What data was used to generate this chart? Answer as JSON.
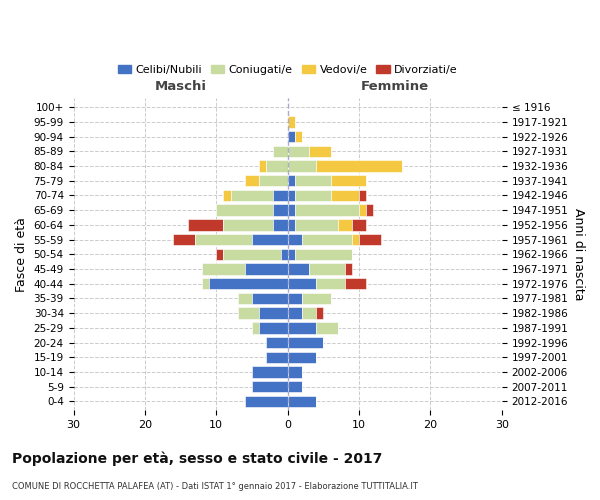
{
  "age_groups": [
    "0-4",
    "5-9",
    "10-14",
    "15-19",
    "20-24",
    "25-29",
    "30-34",
    "35-39",
    "40-44",
    "45-49",
    "50-54",
    "55-59",
    "60-64",
    "65-69",
    "70-74",
    "75-79",
    "80-84",
    "85-89",
    "90-94",
    "95-99",
    "100+"
  ],
  "birth_years": [
    "2012-2016",
    "2007-2011",
    "2002-2006",
    "1997-2001",
    "1992-1996",
    "1987-1991",
    "1982-1986",
    "1977-1981",
    "1972-1976",
    "1967-1971",
    "1962-1966",
    "1957-1961",
    "1952-1956",
    "1947-1951",
    "1942-1946",
    "1937-1941",
    "1932-1936",
    "1927-1931",
    "1922-1926",
    "1917-1921",
    "≤ 1916"
  ],
  "male": {
    "celibe": [
      6,
      5,
      5,
      3,
      3,
      4,
      4,
      5,
      11,
      6,
      1,
      5,
      2,
      2,
      2,
      0,
      0,
      0,
      0,
      0,
      0
    ],
    "coniugato": [
      0,
      0,
      0,
      0,
      0,
      1,
      3,
      2,
      1,
      6,
      8,
      8,
      7,
      8,
      6,
      4,
      3,
      2,
      0,
      0,
      0
    ],
    "vedovo": [
      0,
      0,
      0,
      0,
      0,
      0,
      0,
      0,
      0,
      0,
      0,
      0,
      0,
      0,
      1,
      2,
      1,
      0,
      0,
      0,
      0
    ],
    "divorziato": [
      0,
      0,
      0,
      0,
      0,
      0,
      0,
      0,
      0,
      0,
      1,
      3,
      5,
      0,
      0,
      0,
      0,
      0,
      0,
      0,
      0
    ]
  },
  "female": {
    "nubile": [
      4,
      2,
      2,
      4,
      5,
      4,
      2,
      2,
      4,
      3,
      1,
      2,
      1,
      1,
      1,
      1,
      0,
      0,
      1,
      0,
      0
    ],
    "coniugata": [
      0,
      0,
      0,
      0,
      0,
      3,
      2,
      4,
      4,
      5,
      8,
      7,
      6,
      9,
      5,
      5,
      4,
      3,
      0,
      0,
      0
    ],
    "vedova": [
      0,
      0,
      0,
      0,
      0,
      0,
      0,
      0,
      0,
      0,
      0,
      1,
      2,
      1,
      4,
      5,
      12,
      3,
      1,
      1,
      0
    ],
    "divorziata": [
      0,
      0,
      0,
      0,
      0,
      0,
      1,
      0,
      3,
      1,
      0,
      3,
      2,
      1,
      1,
      0,
      0,
      0,
      0,
      0,
      0
    ]
  },
  "colors": {
    "celibe": "#4472C4",
    "coniugato": "#c8dba0",
    "vedovo": "#F5C842",
    "divorziato": "#C0392B"
  },
  "xlim": 30,
  "title": "Popolazione per età, sesso e stato civile - 2017",
  "subtitle": "COMUNE DI ROCCHETTA PALAFEA (AT) - Dati ISTAT 1° gennaio 2017 - Elaborazione TUTTITALIA.IT",
  "ylabel_left": "Fasce di età",
  "ylabel_right": "Anni di nascita",
  "xlabel_left": "Maschi",
  "xlabel_right": "Femmine",
  "legend_labels": [
    "Celibi/Nubili",
    "Coniugati/e",
    "Vedovi/e",
    "Divorziati/e"
  ]
}
